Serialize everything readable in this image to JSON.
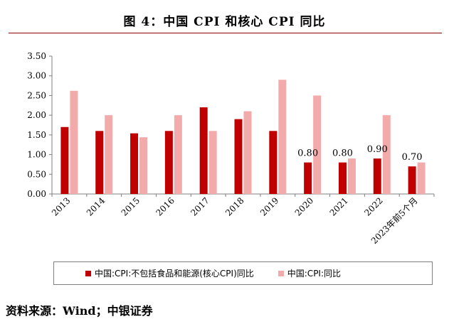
{
  "title": "图 4：中国 CPI 和核心 CPI 同比",
  "source": "资料来源：Wind；中银证券",
  "colors": {
    "core": "#c00000",
    "cpi": "#f2aaaa",
    "axis": "#7f7f7f"
  },
  "chart_data": {
    "type": "bar",
    "categories": [
      "2013",
      "2014",
      "2015",
      "2016",
      "2017",
      "2018",
      "2019",
      "2020",
      "2021",
      "2022",
      "2023年前5个月"
    ],
    "series": [
      {
        "name": "中国:CPI:不包括食品和能源(核心CPI)同比",
        "values": [
          1.7,
          1.6,
          1.54,
          1.6,
          2.2,
          1.9,
          1.6,
          0.8,
          0.8,
          0.9,
          0.7
        ]
      },
      {
        "name": "中国:CPI:同比",
        "values": [
          2.62,
          2.0,
          1.44,
          2.0,
          1.6,
          2.1,
          2.9,
          2.5,
          0.9,
          2.0,
          0.8
        ]
      }
    ],
    "yticks": [
      "0.00",
      "0.50",
      "1.00",
      "1.50",
      "2.00",
      "2.50",
      "3.00",
      "3.50"
    ],
    "ylim": [
      0,
      3.5
    ],
    "data_labels": [
      {
        "category": "2020",
        "text": "0.80"
      },
      {
        "category": "2021",
        "text": "0.80"
      },
      {
        "category": "2022",
        "text": "0.90"
      },
      {
        "category": "2023年前5个月",
        "text": "0.70"
      }
    ],
    "grid": false,
    "legend_position": "bottom"
  }
}
